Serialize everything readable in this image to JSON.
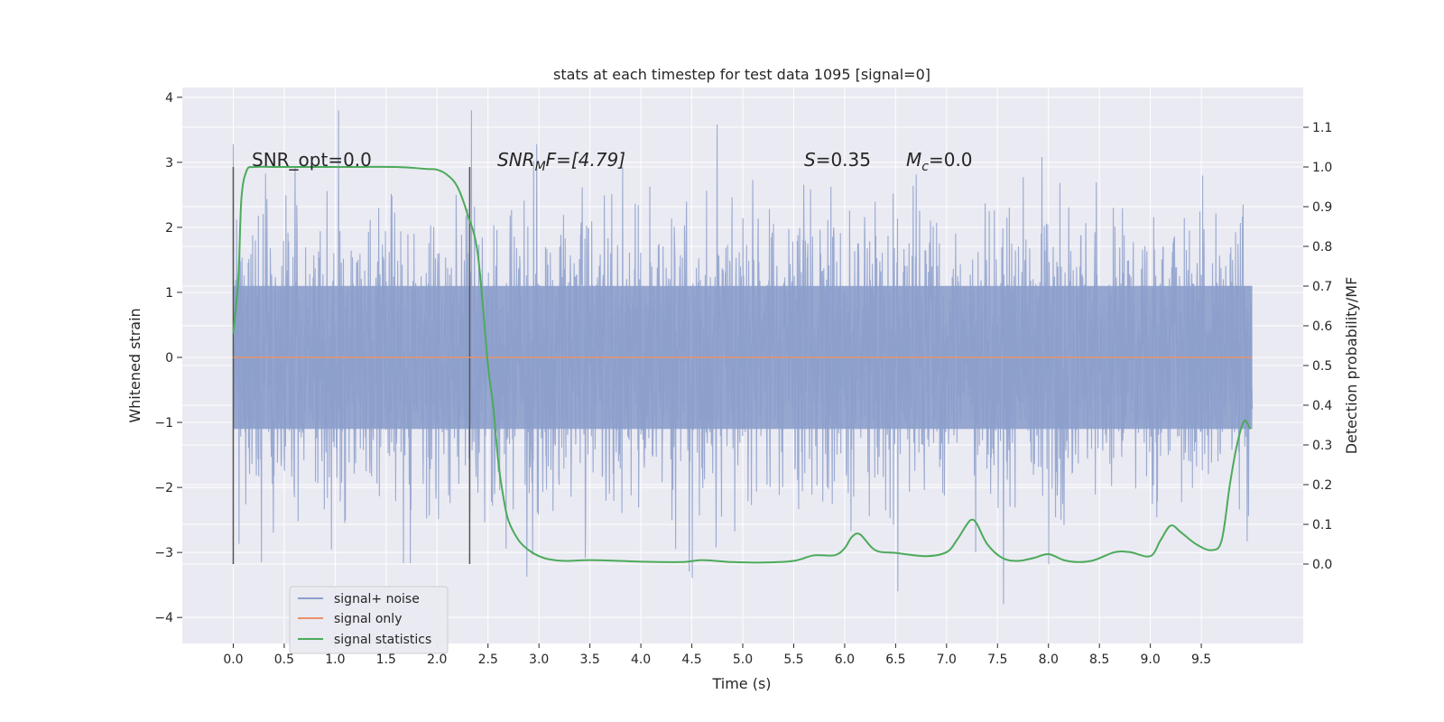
{
  "chart_data": {
    "type": "line",
    "title": "stats at each timestep for test data 1095 [signal=0]",
    "xlabel": "Time (s)",
    "ylabel_left": "Whitened strain",
    "ylabel_right": "Detection probability/MF",
    "xlim": [
      -0.5,
      10.5
    ],
    "ylim_left": [
      -4.4,
      4.15
    ],
    "ylim_right": [
      -0.2,
      1.2
    ],
    "x_ticks": [
      "0.0",
      "0.5",
      "1.0",
      "1.5",
      "2.0",
      "2.5",
      "3.0",
      "3.5",
      "4.0",
      "4.5",
      "5.0",
      "5.5",
      "6.0",
      "6.5",
      "7.0",
      "7.5",
      "8.0",
      "8.5",
      "9.0",
      "9.5"
    ],
    "y_ticks_left": [
      "4",
      "3",
      "2",
      "1",
      "0",
      "−1",
      "−2",
      "−3",
      "−4"
    ],
    "y_ticks_right": [
      "1.1",
      "1.0",
      "0.9",
      "0.8",
      "0.7",
      "0.6",
      "0.5",
      "0.4",
      "0.3",
      "0.2",
      "0.1",
      "0.0"
    ],
    "grid": true,
    "legend_position": "bottom-left",
    "annotations": {
      "snr_opt": "SNR_opt=0.0",
      "snr_mf_sym": "SNR",
      "snr_mf_sub": "M",
      "snr_mf_rest": "F=[4.79]",
      "s_sym": "S",
      "s_rest": "=0.35",
      "mc_sym": "M",
      "mc_sub": "c",
      "mc_rest": "=0.0"
    },
    "vertical_markers": [
      0.0,
      2.32
    ],
    "noise_band": {
      "x_start": 0.0,
      "x_end": 10.0,
      "core_min": -1.1,
      "core_max": 1.1,
      "spike_max": 3.8,
      "spike_min": -4.05
    },
    "series": [
      {
        "name": "signal+ noise",
        "color": "#8c9fcb",
        "axis": "left",
        "kind": "noise"
      },
      {
        "name": "signal only",
        "color": "#e8926a",
        "axis": "left",
        "x": [
          0.0,
          10.0
        ],
        "values": [
          0.0,
          0.0
        ]
      },
      {
        "name": "signal statistics",
        "color": "#4caa5a",
        "axis": "right",
        "x": [
          0.0,
          0.05,
          0.08,
          0.13,
          0.2,
          0.4,
          0.8,
          1.2,
          1.6,
          1.9,
          2.0,
          2.1,
          2.2,
          2.3,
          2.4,
          2.5,
          2.55,
          2.6,
          2.65,
          2.7,
          2.8,
          2.9,
          3.0,
          3.1,
          3.25,
          3.5,
          3.8,
          4.0,
          4.4,
          4.6,
          4.9,
          5.2,
          5.5,
          5.7,
          5.9,
          6.0,
          6.07,
          6.15,
          6.3,
          6.5,
          6.8,
          7.0,
          7.1,
          7.2,
          7.25,
          7.3,
          7.4,
          7.55,
          7.7,
          7.85,
          8.0,
          8.15,
          8.3,
          8.45,
          8.65,
          8.8,
          9.0,
          9.1,
          9.2,
          9.3,
          9.45,
          9.6,
          9.7,
          9.78,
          9.85,
          9.92,
          9.98
        ],
        "values": [
          0.58,
          0.72,
          0.92,
          0.99,
          1.0,
          1.0,
          1.0,
          1.0,
          1.0,
          0.995,
          0.993,
          0.98,
          0.95,
          0.88,
          0.78,
          0.5,
          0.4,
          0.26,
          0.17,
          0.11,
          0.06,
          0.035,
          0.02,
          0.012,
          0.008,
          0.01,
          0.008,
          0.006,
          0.005,
          0.01,
          0.005,
          0.004,
          0.008,
          0.022,
          0.022,
          0.04,
          0.068,
          0.075,
          0.035,
          0.028,
          0.02,
          0.03,
          0.06,
          0.1,
          0.112,
          0.1,
          0.05,
          0.015,
          0.008,
          0.015,
          0.025,
          0.01,
          0.005,
          0.01,
          0.03,
          0.03,
          0.02,
          0.06,
          0.097,
          0.08,
          0.05,
          0.035,
          0.06,
          0.2,
          0.3,
          0.36,
          0.34
        ]
      }
    ]
  }
}
